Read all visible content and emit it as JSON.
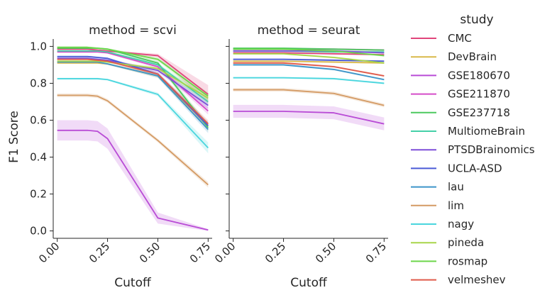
{
  "chart_data": {
    "type": "line",
    "ylabel": "F1 Score",
    "xlabel": "Cutoff",
    "xlim": [
      -0.02,
      0.77
    ],
    "ylim": [
      -0.04,
      1.04
    ],
    "xticks": [
      0.0,
      0.25,
      0.5,
      0.75
    ],
    "xtick_labels": [
      "0.00",
      "0.25",
      "0.50",
      "0.75"
    ],
    "yticks": [
      0.0,
      0.2,
      0.4,
      0.6,
      0.8,
      1.0
    ],
    "ytick_labels": [
      "0.0",
      "0.2",
      "0.4",
      "0.6",
      "0.8",
      "1.0"
    ],
    "x": [
      0.0,
      0.05,
      0.1,
      0.15,
      0.2,
      0.25,
      0.5,
      0.75
    ],
    "legend": {
      "title": "study",
      "placement": "right"
    },
    "series": [
      {
        "name": "CMC",
        "color": "#e0457b"
      },
      {
        "name": "DevBrain",
        "color": "#d9b94a"
      },
      {
        "name": "GSE180670",
        "color": "#b94cd6"
      },
      {
        "name": "GSE211870",
        "color": "#d54cc9"
      },
      {
        "name": "GSE237718",
        "color": "#4cc85e"
      },
      {
        "name": "MultiomeBrain",
        "color": "#45d0a8"
      },
      {
        "name": "PTSDBrainomics",
        "color": "#7e4fd9"
      },
      {
        "name": "UCLA-ASD",
        "color": "#4a5ad6"
      },
      {
        "name": "lau",
        "color": "#3d95c9"
      },
      {
        "name": "lim",
        "color": "#d49a63"
      },
      {
        "name": "nagy",
        "color": "#4ad6de"
      },
      {
        "name": "pineda",
        "color": "#a8d64a"
      },
      {
        "name": "rosmap",
        "color": "#6cd64a"
      },
      {
        "name": "velmeshev",
        "color": "#e05a4a"
      }
    ],
    "panels": [
      {
        "title": "method = scvi",
        "lines": [
          {
            "series": "CMC",
            "y": [
              0.985,
              0.985,
              0.985,
              0.985,
              0.98,
              0.975,
              0.95,
              0.74
            ],
            "band": [
              0.005,
              0.005,
              0.005,
              0.005,
              0.005,
              0.005,
              0.01,
              0.05
            ]
          },
          {
            "series": "DevBrain",
            "y": [
              0.91,
              0.91,
              0.91,
              0.91,
              0.91,
              0.905,
              0.84,
              0.57
            ],
            "band": [
              0.005,
              0.005,
              0.005,
              0.005,
              0.005,
              0.005,
              0.01,
              0.02
            ]
          },
          {
            "series": "GSE180670",
            "y": [
              0.545,
              0.545,
              0.545,
              0.545,
              0.54,
              0.5,
              0.07,
              0.005
            ],
            "band": [
              0.055,
              0.055,
              0.055,
              0.055,
              0.055,
              0.055,
              0.03,
              0.005
            ]
          },
          {
            "series": "GSE211870",
            "y": [
              0.97,
              0.97,
              0.97,
              0.97,
              0.97,
              0.965,
              0.89,
              0.65
            ],
            "band": [
              0.005,
              0.005,
              0.005,
              0.005,
              0.005,
              0.005,
              0.01,
              0.02
            ]
          },
          {
            "series": "GSE237718",
            "y": [
              0.99,
              0.99,
              0.99,
              0.99,
              0.99,
              0.985,
              0.91,
              0.56
            ],
            "band": [
              0.005,
              0.005,
              0.005,
              0.005,
              0.005,
              0.005,
              0.01,
              0.02
            ]
          },
          {
            "series": "MultiomeBrain",
            "y": [
              0.975,
              0.975,
              0.975,
              0.975,
              0.975,
              0.97,
              0.9,
              0.7
            ],
            "band": [
              0.005,
              0.005,
              0.005,
              0.005,
              0.005,
              0.005,
              0.01,
              0.02
            ]
          },
          {
            "series": "PTSDBrainomics",
            "y": [
              0.935,
              0.935,
              0.935,
              0.935,
              0.93,
              0.925,
              0.87,
              0.68
            ],
            "band": [
              0.005,
              0.005,
              0.005,
              0.005,
              0.005,
              0.005,
              0.01,
              0.02
            ]
          },
          {
            "series": "UCLA-ASD",
            "y": [
              0.945,
              0.945,
              0.945,
              0.945,
              0.94,
              0.935,
              0.85,
              0.57
            ],
            "band": [
              0.005,
              0.005,
              0.005,
              0.005,
              0.005,
              0.005,
              0.01,
              0.02
            ]
          },
          {
            "series": "lau",
            "y": [
              0.915,
              0.915,
              0.915,
              0.915,
              0.915,
              0.905,
              0.84,
              0.55
            ],
            "band": [
              0.005,
              0.005,
              0.005,
              0.005,
              0.005,
              0.005,
              0.01,
              0.02
            ]
          },
          {
            "series": "lim",
            "y": [
              0.735,
              0.735,
              0.735,
              0.735,
              0.73,
              0.705,
              0.49,
              0.25
            ],
            "band": [
              0.01,
              0.01,
              0.01,
              0.01,
              0.01,
              0.01,
              0.01,
              0.015
            ]
          },
          {
            "series": "nagy",
            "y": [
              0.825,
              0.825,
              0.825,
              0.825,
              0.825,
              0.82,
              0.74,
              0.45
            ],
            "band": [
              0.005,
              0.005,
              0.005,
              0.005,
              0.005,
              0.005,
              0.01,
              0.03
            ]
          },
          {
            "series": "pineda",
            "y": [
              0.92,
              0.92,
              0.92,
              0.92,
              0.92,
              0.915,
              0.88,
              0.72
            ],
            "band": [
              0.005,
              0.005,
              0.005,
              0.005,
              0.005,
              0.005,
              0.01,
              0.02
            ]
          },
          {
            "series": "rosmap",
            "y": [
              0.995,
              0.995,
              0.995,
              0.995,
              0.99,
              0.985,
              0.93,
              0.73
            ],
            "band": [
              0.005,
              0.005,
              0.005,
              0.005,
              0.005,
              0.005,
              0.01,
              0.02
            ]
          },
          {
            "series": "velmeshev",
            "y": [
              0.93,
              0.93,
              0.93,
              0.93,
              0.925,
              0.92,
              0.85,
              0.58
            ],
            "band": [
              0.005,
              0.005,
              0.005,
              0.005,
              0.005,
              0.005,
              0.01,
              0.02
            ]
          }
        ]
      },
      {
        "title": "method = seurat",
        "lines": [
          {
            "series": "CMC",
            "y": [
              0.965,
              0.965,
              0.965,
              0.965,
              0.965,
              0.965,
              0.96,
              0.955
            ],
            "band": [
              0.005,
              0.005,
              0.005,
              0.005,
              0.005,
              0.005,
              0.005,
              0.005
            ]
          },
          {
            "series": "DevBrain",
            "y": [
              0.92,
              0.92,
              0.92,
              0.92,
              0.92,
              0.92,
              0.915,
              0.91
            ],
            "band": [
              0.005,
              0.005,
              0.005,
              0.005,
              0.005,
              0.005,
              0.005,
              0.005
            ]
          },
          {
            "series": "GSE180670",
            "y": [
              0.648,
              0.648,
              0.648,
              0.648,
              0.648,
              0.648,
              0.64,
              0.58
            ],
            "band": [
              0.035,
              0.035,
              0.035,
              0.035,
              0.035,
              0.035,
              0.035,
              0.035
            ]
          },
          {
            "series": "GSE211870",
            "y": [
              0.985,
              0.985,
              0.985,
              0.985,
              0.985,
              0.985,
              0.985,
              0.98
            ],
            "band": [
              0.005,
              0.005,
              0.005,
              0.005,
              0.005,
              0.005,
              0.005,
              0.005
            ]
          },
          {
            "series": "GSE237718",
            "y": [
              0.99,
              0.99,
              0.99,
              0.99,
              0.99,
              0.99,
              0.985,
              0.98
            ],
            "band": [
              0.005,
              0.005,
              0.005,
              0.005,
              0.005,
              0.005,
              0.005,
              0.005
            ]
          },
          {
            "series": "MultiomeBrain",
            "y": [
              0.975,
              0.975,
              0.975,
              0.975,
              0.975,
              0.975,
              0.97,
              0.97
            ],
            "band": [
              0.005,
              0.005,
              0.005,
              0.005,
              0.005,
              0.005,
              0.005,
              0.005
            ]
          },
          {
            "series": "PTSDBrainomics",
            "y": [
              0.975,
              0.975,
              0.975,
              0.975,
              0.975,
              0.975,
              0.975,
              0.965
            ],
            "band": [
              0.005,
              0.005,
              0.005,
              0.005,
              0.005,
              0.005,
              0.005,
              0.005
            ]
          },
          {
            "series": "UCLA-ASD",
            "y": [
              0.93,
              0.93,
              0.93,
              0.93,
              0.93,
              0.93,
              0.925,
              0.92
            ],
            "band": [
              0.005,
              0.005,
              0.005,
              0.005,
              0.005,
              0.005,
              0.005,
              0.005
            ]
          },
          {
            "series": "lau",
            "y": [
              0.9,
              0.9,
              0.9,
              0.9,
              0.9,
              0.9,
              0.875,
              0.82
            ],
            "band": [
              0.005,
              0.005,
              0.005,
              0.005,
              0.005,
              0.005,
              0.005,
              0.005
            ]
          },
          {
            "series": "lim",
            "y": [
              0.765,
              0.765,
              0.765,
              0.765,
              0.765,
              0.765,
              0.745,
              0.68
            ],
            "band": [
              0.01,
              0.01,
              0.01,
              0.01,
              0.01,
              0.01,
              0.01,
              0.01
            ]
          },
          {
            "series": "nagy",
            "y": [
              0.83,
              0.83,
              0.83,
              0.83,
              0.83,
              0.83,
              0.825,
              0.8
            ],
            "band": [
              0.005,
              0.005,
              0.005,
              0.005,
              0.005,
              0.005,
              0.005,
              0.005
            ]
          },
          {
            "series": "pineda",
            "y": [
              0.96,
              0.96,
              0.96,
              0.96,
              0.96,
              0.96,
              0.94,
              0.91
            ],
            "band": [
              0.005,
              0.005,
              0.005,
              0.005,
              0.005,
              0.005,
              0.005,
              0.005
            ]
          },
          {
            "series": "rosmap",
            "y": [
              0.985,
              0.985,
              0.985,
              0.985,
              0.985,
              0.985,
              0.975,
              0.95
            ],
            "band": [
              0.005,
              0.005,
              0.005,
              0.005,
              0.005,
              0.005,
              0.005,
              0.005
            ]
          },
          {
            "series": "velmeshev",
            "y": [
              0.91,
              0.91,
              0.91,
              0.91,
              0.91,
              0.91,
              0.89,
              0.84
            ],
            "band": [
              0.005,
              0.005,
              0.005,
              0.005,
              0.005,
              0.005,
              0.005,
              0.005
            ]
          }
        ]
      }
    ]
  }
}
